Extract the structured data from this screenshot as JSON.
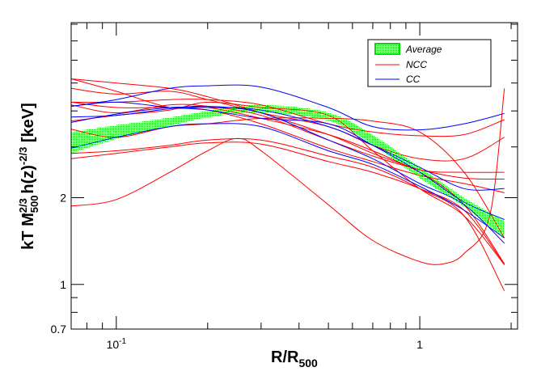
{
  "chart_data": {
    "type": "line",
    "title": "",
    "xlabel": {
      "main": "R/R",
      "sub": "500"
    },
    "ylabel": {
      "p1": "kT M",
      "sub1": "500",
      "sup1": "-2/3",
      "p2": " h(z)",
      "sup2": "-2/3",
      "p3": " [keV]"
    },
    "xscale": "log",
    "yscale": "log",
    "xlim": [
      0.071,
      2.1
    ],
    "ylim": [
      0.7,
      8.1
    ],
    "grid": false,
    "legend_position": "top-right",
    "x_ticks": [
      {
        "value": 0.1,
        "label_base": "10",
        "label_exp": "-1"
      },
      {
        "value": 1,
        "label_base": "1",
        "label_exp": ""
      }
    ],
    "y_ticks": [
      {
        "value": 0.7,
        "label": "0.7"
      },
      {
        "value": 1,
        "label": "1"
      },
      {
        "value": 2,
        "label": "2"
      }
    ],
    "colors": {
      "NCC": "#ff0000",
      "CC": "#0000ff",
      "Average": "#00dd00"
    },
    "legend": [
      {
        "label": "Average",
        "kind": "band"
      },
      {
        "label": "NCC",
        "kind": "line",
        "color": "#ff0000"
      },
      {
        "label": "CC",
        "kind": "line",
        "color": "#0000ff"
      }
    ],
    "x": [
      0.071,
      0.1,
      0.15,
      0.2,
      0.3,
      0.5,
      0.7,
      1.0,
      1.4,
      1.9
    ],
    "average_band": {
      "lower": [
        2.85,
        3.2,
        3.55,
        3.8,
        3.95,
        3.7,
        3.05,
        2.34,
        1.86,
        1.45
      ],
      "upper": [
        3.38,
        3.57,
        3.8,
        4.0,
        4.2,
        3.95,
        3.3,
        2.55,
        2.0,
        1.66
      ]
    },
    "series": [
      {
        "group": "NCC",
        "y": [
          5.17,
          5.0,
          4.79,
          4.48,
          3.94,
          3.31,
          2.85,
          2.45,
          1.89,
          1.18
        ]
      },
      {
        "group": "NCC",
        "x": [
          0.071,
          0.1,
          0.15,
          0.2,
          0.25,
          0.3,
          0.5,
          0.7,
          1.0,
          1.2,
          1.4,
          1.7,
          1.9
        ],
        "y": [
          1.87,
          1.97,
          2.45,
          2.91,
          3.21,
          2.91,
          1.89,
          1.42,
          1.2,
          1.18,
          1.28,
          1.73,
          4.79
        ]
      },
      {
        "group": "NCC",
        "y": [
          2.73,
          2.85,
          3.0,
          3.1,
          3.07,
          2.67,
          2.45,
          2.15,
          1.81,
          1.17
        ]
      },
      {
        "group": "NCC",
        "y": [
          2.85,
          2.91,
          3.04,
          3.17,
          3.17,
          2.79,
          2.55,
          2.15,
          1.73,
          0.95
        ]
      },
      {
        "group": "NCC",
        "y": [
          3.46,
          3.24,
          3.53,
          3.61,
          3.77,
          3.77,
          3.69,
          3.38,
          2.45,
          1.45
        ]
      },
      {
        "group": "NCC",
        "y": [
          4.79,
          4.58,
          4.68,
          4.38,
          3.94,
          3.53,
          3.04,
          2.73,
          2.73,
          3.24
        ]
      },
      {
        "group": "NCC",
        "y": [
          4.29,
          4.29,
          4.38,
          4.38,
          4.2,
          3.61,
          3.38,
          3.28,
          3.31,
          3.73
        ]
      },
      {
        "group": "NCC",
        "y": [
          5.17,
          4.68,
          4.11,
          4.11,
          3.77,
          3.31,
          2.91,
          2.5,
          2.45,
          2.45
        ]
      },
      {
        "group": "NCC",
        "y": [
          4.2,
          3.94,
          4.2,
          4.15,
          3.86,
          3.17,
          2.79,
          2.5,
          2.34,
          2.32
        ]
      },
      {
        "group": "NCC",
        "y": [
          4.29,
          4.11,
          4.11,
          4.03,
          3.61,
          2.97,
          2.67,
          2.39,
          2.24,
          2.08
        ]
      },
      {
        "group": "NCC",
        "y": [
          3.69,
          3.86,
          4.03,
          4.29,
          4.11,
          3.86,
          2.91,
          2.15,
          1.73,
          1.17
        ]
      },
      {
        "group": "CC",
        "y": [
          4.15,
          4.38,
          4.79,
          4.89,
          4.84,
          4.11,
          3.53,
          3.44,
          3.61,
          3.92
        ]
      },
      {
        "group": "CC",
        "y": [
          3.65,
          3.9,
          4.11,
          4.11,
          4.03,
          3.53,
          3.04,
          2.55,
          2.15,
          2.15
        ]
      },
      {
        "group": "CC",
        "y": [
          3.81,
          3.86,
          4.07,
          4.15,
          3.94,
          3.17,
          2.73,
          2.24,
          1.89,
          1.39
        ]
      },
      {
        "group": "CC",
        "y": [
          2.97,
          3.24,
          3.53,
          3.61,
          3.53,
          2.91,
          2.61,
          2.19,
          1.81,
          1.45
        ]
      },
      {
        "group": "CC",
        "y": [
          4.15,
          4.29,
          4.11,
          4.03,
          3.77,
          3.61,
          3.04,
          2.45,
          1.93,
          1.68
        ]
      }
    ]
  }
}
